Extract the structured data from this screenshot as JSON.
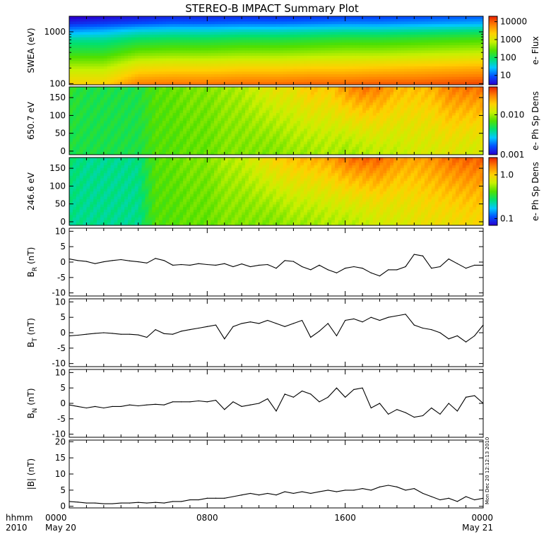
{
  "title": "STEREO-B IMPACT Summary Plot",
  "time_axis": {
    "row1_label": "hhmm",
    "row2_label": "2010",
    "ticks": [
      {
        "hhmm": "0000",
        "date": "May 20"
      },
      {
        "hhmm": "0800",
        "date": ""
      },
      {
        "hhmm": "1600",
        "date": ""
      },
      {
        "hhmm": "0000",
        "date": "May 21"
      }
    ]
  },
  "stamp": "Mon Dec 20 12:12:13 2010",
  "colors": {
    "colormap": [
      "#2a00d0",
      "#0050ff",
      "#00c8ff",
      "#00e070",
      "#50e000",
      "#c8f000",
      "#ffd000",
      "#ff8000",
      "#e82000"
    ],
    "trace": "#000000"
  },
  "chart_data": [
    {
      "type": "heatmap",
      "panel": "swea",
      "ylabel": "SWEA (eV)",
      "yscale": "log",
      "ylim": [
        95,
        2000
      ],
      "yticks": [
        "100",
        "1000"
      ],
      "colorbar": {
        "label": "e- Flux",
        "scale": "log",
        "range": [
          3,
          20000
        ],
        "ticks": [
          "10",
          "100",
          "1000",
          "10000"
        ]
      },
      "x_hours": [
        0,
        2,
        4,
        6,
        8,
        10,
        12,
        14,
        16,
        18,
        20,
        22,
        24
      ],
      "energy_eV": [
        100,
        200,
        400,
        700,
        1000,
        1500,
        2000
      ],
      "log_flux": [
        [
          3.3,
          3.3,
          3.8,
          3.85,
          3.85,
          3.9,
          3.9,
          3.95,
          3.95,
          4.0,
          4.0,
          4.05,
          4.1
        ],
        [
          2.8,
          2.8,
          3.2,
          3.25,
          3.25,
          3.3,
          3.3,
          3.35,
          3.35,
          3.4,
          3.45,
          3.5,
          3.55
        ],
        [
          2.2,
          2.2,
          2.5,
          2.55,
          2.55,
          2.6,
          2.6,
          2.65,
          2.7,
          2.7,
          2.75,
          2.8,
          2.85
        ],
        [
          1.8,
          1.8,
          2.0,
          2.05,
          2.05,
          2.1,
          2.1,
          2.15,
          2.2,
          2.2,
          2.25,
          2.3,
          2.35
        ],
        [
          1.3,
          1.4,
          1.6,
          1.65,
          1.65,
          1.7,
          1.7,
          1.75,
          1.8,
          1.8,
          1.85,
          1.9,
          1.95
        ],
        [
          0.7,
          0.8,
          0.9,
          1.0,
          1.0,
          1.05,
          1.05,
          1.1,
          1.15,
          1.15,
          1.2,
          1.25,
          1.3
        ],
        [
          0.4,
          0.5,
          0.6,
          0.7,
          0.7,
          0.75,
          0.75,
          0.8,
          0.85,
          0.85,
          0.9,
          0.95,
          1.0
        ]
      ]
    },
    {
      "type": "heatmap",
      "panel": "pad_650",
      "ylabel": "650.7 eV",
      "ylim": [
        -10,
        180
      ],
      "yticks": [
        "0",
        "50",
        "100",
        "150"
      ],
      "colorbar": {
        "label": "e- Ph Sp Dens",
        "scale": "log",
        "range": [
          0.001,
          0.05
        ],
        "ticks": [
          "0.001",
          "0.010"
        ]
      },
      "x_hours": [
        0,
        1,
        2,
        3,
        4,
        5,
        6,
        7,
        8,
        9,
        10,
        11,
        12,
        13,
        14,
        15,
        16,
        17,
        18,
        19,
        20,
        21,
        22,
        23,
        24
      ],
      "level_low": [
        0.42,
        0.42,
        0.42,
        0.42,
        0.42,
        0.5,
        0.5,
        0.52,
        0.52,
        0.55,
        0.55,
        0.55,
        0.55,
        0.58,
        0.58,
        0.6,
        0.58,
        0.6,
        0.62,
        0.62,
        0.65,
        0.65,
        0.68,
        0.65,
        0.65
      ],
      "level_high": [
        0.45,
        0.42,
        0.42,
        0.42,
        0.42,
        0.5,
        0.52,
        0.55,
        0.55,
        0.58,
        0.6,
        0.65,
        0.7,
        0.7,
        0.78,
        0.75,
        0.85,
        0.9,
        0.88,
        0.8,
        0.78,
        0.8,
        0.88,
        0.9,
        0.9
      ],
      "note": "0 = minimum of colorbar range, 1 = maximum"
    },
    {
      "type": "heatmap",
      "panel": "pad_246",
      "ylabel": "246.6 eV",
      "ylim": [
        -10,
        180
      ],
      "yticks": [
        "0",
        "50",
        "100",
        "150"
      ],
      "colorbar": {
        "label": "e- Ph Sp Dens",
        "scale": "log",
        "range": [
          0.07,
          2.5
        ],
        "ticks": [
          "0.1",
          "1.0"
        ]
      },
      "x_hours": [
        0,
        1,
        2,
        3,
        4,
        5,
        6,
        7,
        8,
        9,
        10,
        11,
        12,
        13,
        14,
        15,
        16,
        17,
        18,
        19,
        20,
        21,
        22,
        23,
        24
      ],
      "level_low": [
        0.35,
        0.35,
        0.35,
        0.35,
        0.35,
        0.5,
        0.5,
        0.52,
        0.52,
        0.55,
        0.55,
        0.55,
        0.55,
        0.58,
        0.58,
        0.6,
        0.6,
        0.62,
        0.65,
        0.65,
        0.68,
        0.7,
        0.7,
        0.72,
        0.72
      ],
      "level_high": [
        0.38,
        0.35,
        0.35,
        0.35,
        0.36,
        0.5,
        0.52,
        0.55,
        0.55,
        0.6,
        0.62,
        0.68,
        0.75,
        0.78,
        0.8,
        0.82,
        0.9,
        0.92,
        0.92,
        0.85,
        0.82,
        0.85,
        0.9,
        0.92,
        0.92
      ]
    },
    {
      "type": "line",
      "panel": "br",
      "ylabel": "B",
      "ylabel_sub": "R",
      "ylabel_unit": "(nT)",
      "ylim": [
        -11,
        11
      ],
      "yticks": [
        "-10",
        "-5",
        "0",
        "5",
        "10"
      ],
      "x_hours": [
        0,
        0.5,
        1,
        1.5,
        2,
        2.5,
        3,
        3.5,
        4,
        4.5,
        5,
        5.5,
        6,
        6.5,
        7,
        7.5,
        8,
        8.5,
        9,
        9.5,
        10,
        10.5,
        11,
        11.5,
        12,
        12.5,
        13,
        13.5,
        14,
        14.5,
        15,
        15.5,
        16,
        16.5,
        17,
        17.5,
        18,
        18.5,
        19,
        19.5,
        20,
        20.5,
        21,
        21.5,
        22,
        22.5,
        23,
        23.5,
        24
      ],
      "values": [
        1.0,
        0.5,
        0.2,
        -0.5,
        0.1,
        0.5,
        0.8,
        0.4,
        0.1,
        -0.3,
        1.2,
        0.5,
        -1.0,
        -0.8,
        -1.0,
        -0.5,
        -0.8,
        -1.0,
        -0.5,
        -1.5,
        -0.6,
        -1.5,
        -1.0,
        -0.8,
        -2.0,
        0.5,
        0.2,
        -1.5,
        -2.5,
        -1.0,
        -2.5,
        -3.5,
        -2.0,
        -1.5,
        -2.0,
        -3.5,
        -4.5,
        -2.5,
        -2.5,
        -1.5,
        2.5,
        2.0,
        -2.0,
        -1.5,
        1.0,
        -0.5,
        -2.0,
        -1.0,
        -1.0
      ]
    },
    {
      "type": "line",
      "panel": "bt",
      "ylabel": "B",
      "ylabel_sub": "T",
      "ylabel_unit": "(nT)",
      "ylim": [
        -11,
        11
      ],
      "yticks": [
        "-10",
        "-5",
        "0",
        "5",
        "10"
      ],
      "x_hours": [
        0,
        0.5,
        1,
        1.5,
        2,
        2.5,
        3,
        3.5,
        4,
        4.5,
        5,
        5.5,
        6,
        6.5,
        7,
        7.5,
        8,
        8.5,
        9,
        9.5,
        10,
        10.5,
        11,
        11.5,
        12,
        12.5,
        13,
        13.5,
        14,
        14.5,
        15,
        15.5,
        16,
        16.5,
        17,
        17.5,
        18,
        18.5,
        19,
        19.5,
        20,
        20.5,
        21,
        21.5,
        22,
        22.5,
        23,
        23.5,
        24
      ],
      "values": [
        -1.0,
        -0.8,
        -0.5,
        -0.2,
        0.0,
        -0.2,
        -0.5,
        -0.5,
        -0.7,
        -1.5,
        1.0,
        -0.3,
        -0.5,
        0.5,
        1.0,
        1.5,
        2.0,
        2.5,
        -2.0,
        2.0,
        3.0,
        3.5,
        3.0,
        4.0,
        3.0,
        2.0,
        3.0,
        4.0,
        -1.5,
        0.5,
        3.0,
        -1.0,
        4.0,
        4.5,
        3.5,
        5.0,
        4.0,
        5.0,
        5.5,
        6.0,
        2.5,
        1.5,
        1.0,
        0.0,
        -2.0,
        -1.0,
        -3.0,
        -1.0,
        2.5
      ]
    },
    {
      "type": "line",
      "panel": "bn",
      "ylabel": "B",
      "ylabel_sub": "N",
      "ylabel_unit": "(nT)",
      "ylim": [
        -11,
        11
      ],
      "yticks": [
        "-10",
        "-5",
        "0",
        "5",
        "10"
      ],
      "x_hours": [
        0,
        0.5,
        1,
        1.5,
        2,
        2.5,
        3,
        3.5,
        4,
        4.5,
        5,
        5.5,
        6,
        6.5,
        7,
        7.5,
        8,
        8.5,
        9,
        9.5,
        10,
        10.5,
        11,
        11.5,
        12,
        12.5,
        13,
        13.5,
        14,
        14.5,
        15,
        15.5,
        16,
        16.5,
        17,
        17.5,
        18,
        18.5,
        19,
        19.5,
        20,
        20.5,
        21,
        21.5,
        22,
        22.5,
        23,
        23.5,
        24
      ],
      "values": [
        -0.5,
        -1.0,
        -1.5,
        -1.0,
        -1.5,
        -1.0,
        -1.0,
        -0.5,
        -0.8,
        -0.5,
        -0.3,
        -0.5,
        0.5,
        0.5,
        0.5,
        0.8,
        0.5,
        1.0,
        -2.0,
        0.5,
        -1.0,
        -0.5,
        0.0,
        1.5,
        -2.5,
        3.0,
        2.0,
        4.0,
        3.0,
        0.5,
        2.0,
        5.0,
        2.0,
        4.5,
        5.0,
        -1.5,
        0.0,
        -3.5,
        -2.0,
        -3.0,
        -4.5,
        -4.0,
        -1.5,
        -3.5,
        0.0,
        -2.5,
        2.0,
        2.5,
        0.0
      ]
    },
    {
      "type": "line",
      "panel": "bmag",
      "ylabel": "|B| (nT)",
      "ylim": [
        -0.5,
        20.5
      ],
      "yticks": [
        "0",
        "5",
        "10",
        "15",
        "20"
      ],
      "x_hours": [
        0,
        0.5,
        1,
        1.5,
        2,
        2.5,
        3,
        3.5,
        4,
        4.5,
        5,
        5.5,
        6,
        6.5,
        7,
        7.5,
        8,
        8.5,
        9,
        9.5,
        10,
        10.5,
        11,
        11.5,
        12,
        12.5,
        13,
        13.5,
        14,
        14.5,
        15,
        15.5,
        16,
        16.5,
        17,
        17.5,
        18,
        18.5,
        19,
        19.5,
        20,
        20.5,
        21,
        21.5,
        22,
        22.5,
        23,
        23.5,
        24
      ],
      "values": [
        1.5,
        1.3,
        1.0,
        1.0,
        0.8,
        0.8,
        1.0,
        1.0,
        1.2,
        1.0,
        1.2,
        1.0,
        1.5,
        1.5,
        2.0,
        2.0,
        2.5,
        2.5,
        2.5,
        3.0,
        3.5,
        4.0,
        3.5,
        4.0,
        3.5,
        4.5,
        4.0,
        4.5,
        4.0,
        4.5,
        5.0,
        4.5,
        5.0,
        5.0,
        5.5,
        5.0,
        6.0,
        6.5,
        6.0,
        5.0,
        5.5,
        4.0,
        3.0,
        2.0,
        2.5,
        1.5,
        3.0,
        2.0,
        2.5
      ]
    }
  ]
}
